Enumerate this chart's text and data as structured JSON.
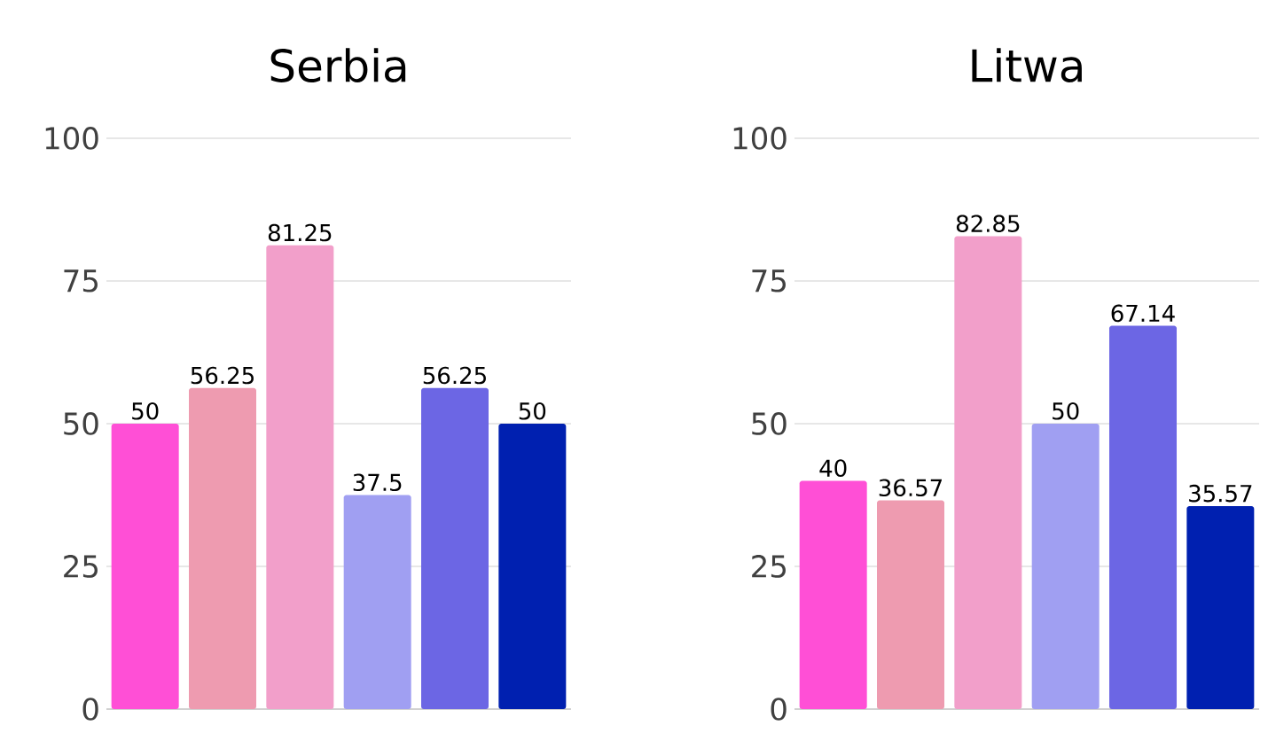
{
  "chart_data": [
    {
      "type": "bar",
      "title": "Serbia",
      "categories": [
        null,
        null,
        null,
        null,
        null,
        null
      ],
      "values": [
        50,
        56.25,
        81.25,
        37.5,
        56.25,
        50
      ],
      "colors": [
        "#ff4fd6",
        "#ee9bb0",
        "#f29fca",
        "#a09ff2",
        "#6c66e4",
        "#0020b0"
      ],
      "ylim": [
        0,
        100
      ],
      "yticks": [
        0,
        25,
        50,
        75,
        100
      ],
      "grid": "y",
      "data_labels": true
    },
    {
      "type": "bar",
      "title": "Litwa",
      "categories": [
        null,
        null,
        null,
        null,
        null,
        null
      ],
      "values": [
        40,
        36.57,
        82.85,
        50,
        67.14,
        35.57
      ],
      "colors": [
        "#ff4fd6",
        "#ee9bb0",
        "#f29fca",
        "#a09ff2",
        "#6c66e4",
        "#0020b0"
      ],
      "ylim": [
        0,
        100
      ],
      "yticks": [
        0,
        25,
        50,
        75,
        100
      ],
      "grid": "y",
      "data_labels": true
    }
  ]
}
